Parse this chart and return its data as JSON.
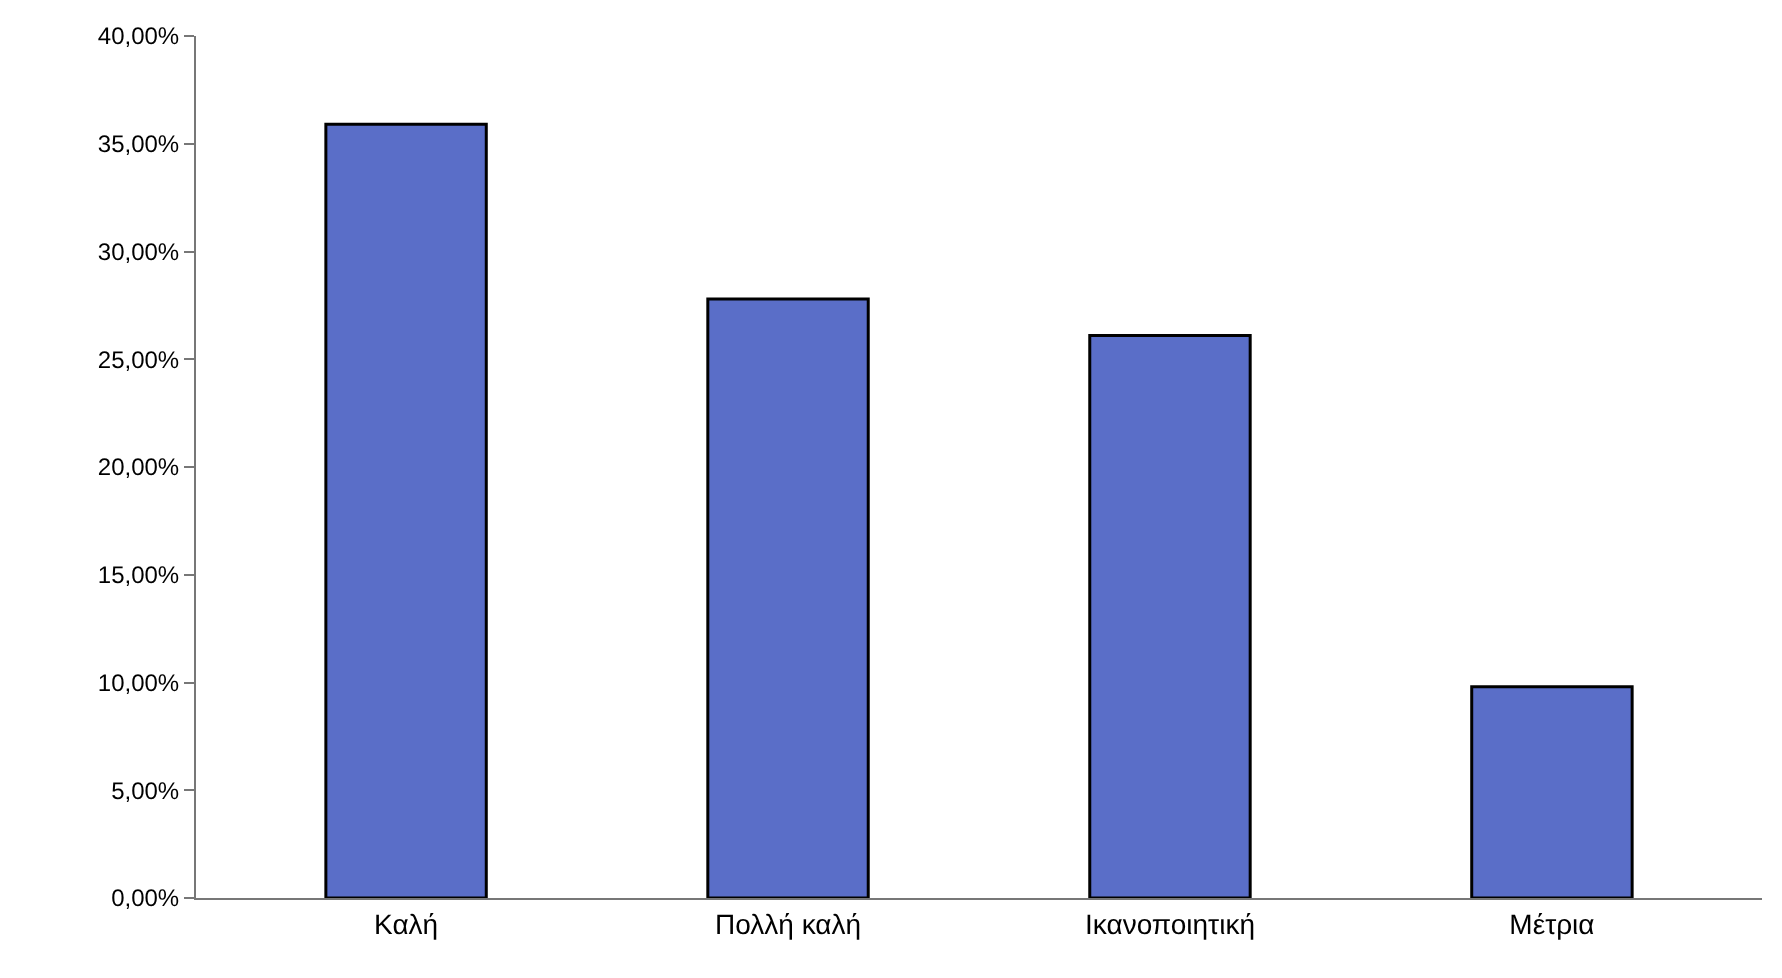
{
  "chart_data": {
    "type": "bar",
    "categories": [
      "Καλή",
      "Πολλή καλή",
      "Ικανοποιητική",
      "Μέτρια"
    ],
    "values": [
      35.9,
      27.8,
      26.1,
      9.8
    ],
    "color": "#5a6ec8",
    "ylim": [
      0,
      40
    ],
    "yticks": [
      {
        "value": 0,
        "label": "0,00%"
      },
      {
        "value": 5,
        "label": "5,00%"
      },
      {
        "value": 10,
        "label": "10,00%"
      },
      {
        "value": 15,
        "label": "15,00%"
      },
      {
        "value": 20,
        "label": "20,00%"
      },
      {
        "value": 25,
        "label": "25,00%"
      },
      {
        "value": 30,
        "label": "30,00%"
      },
      {
        "value": 35,
        "label": "35,00%"
      },
      {
        "value": 40,
        "label": "40,00%"
      }
    ],
    "grid": false,
    "legend": false
  }
}
